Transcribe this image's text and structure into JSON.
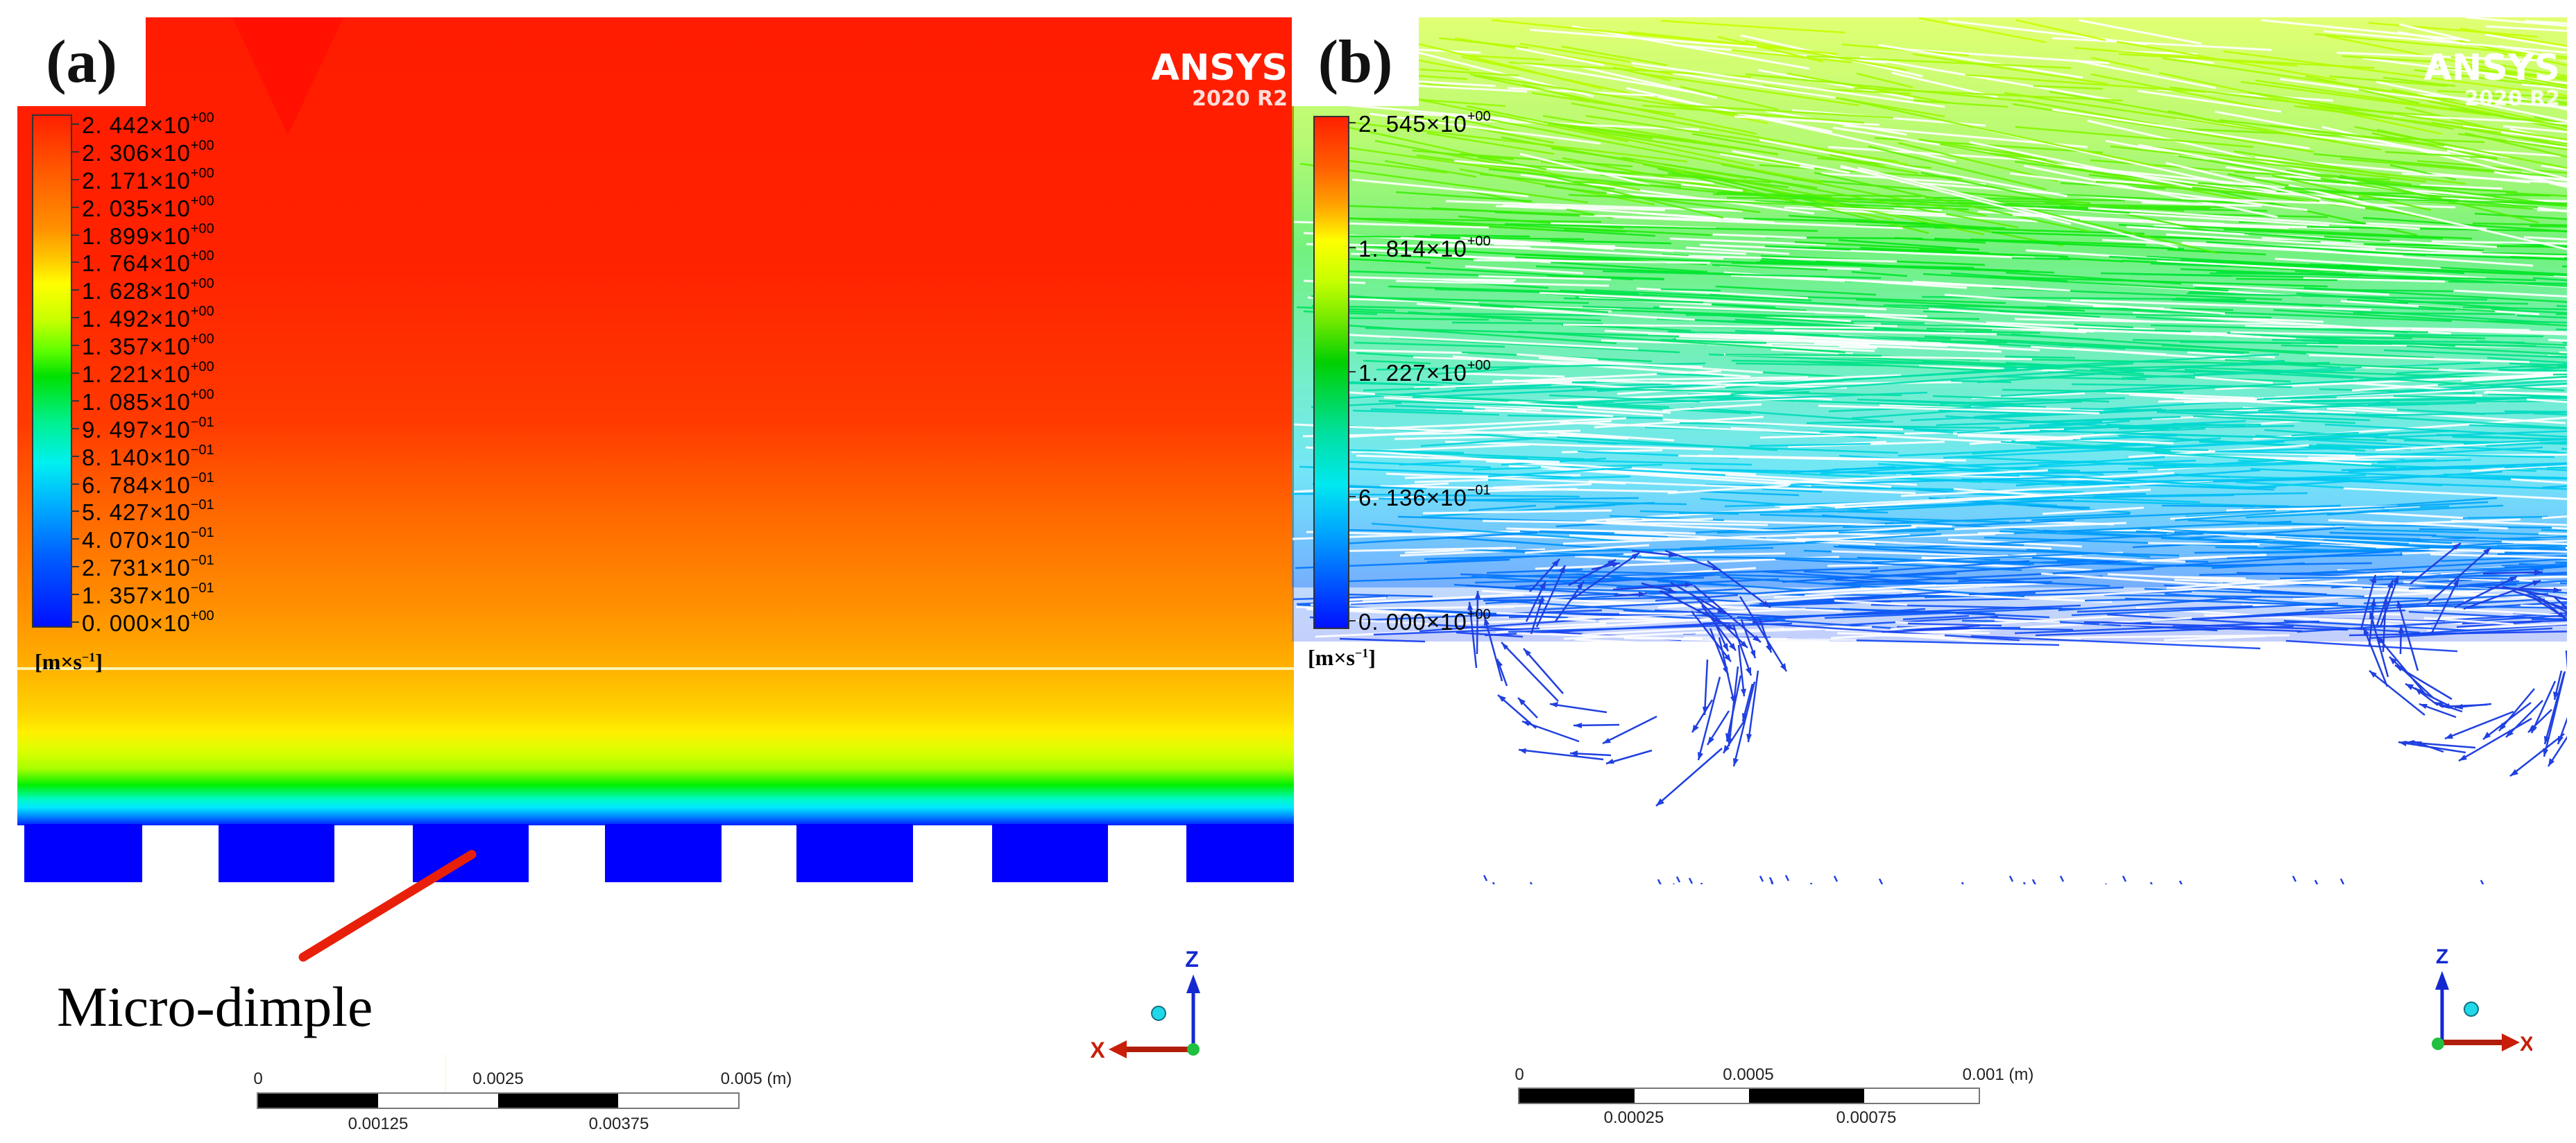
{
  "figure": {
    "panels": [
      {
        "id": "a",
        "label": "(a)",
        "type": "velocity-contour",
        "watermark": {
          "name": "ANSYS",
          "version": "2020 R2"
        },
        "legend": {
          "units": "[m×s",
          "units_exp": "−1",
          "units_close": "]",
          "entries": [
            {
              "mant": "2. 442",
              "exp": "+00"
            },
            {
              "mant": "2. 306",
              "exp": "+00"
            },
            {
              "mant": "2. 171",
              "exp": "+00"
            },
            {
              "mant": "2. 035",
              "exp": "+00"
            },
            {
              "mant": "1. 899",
              "exp": "+00"
            },
            {
              "mant": "1. 764",
              "exp": "+00"
            },
            {
              "mant": "1. 628",
              "exp": "+00"
            },
            {
              "mant": "1. 492",
              "exp": "+00"
            },
            {
              "mant": "1. 357",
              "exp": "+00"
            },
            {
              "mant": "1. 221",
              "exp": "+00"
            },
            {
              "mant": "1. 085",
              "exp": "+00"
            },
            {
              "mant": "9. 497",
              "exp": "−01"
            },
            {
              "mant": "8. 140",
              "exp": "−01"
            },
            {
              "mant": "6. 784",
              "exp": "−01"
            },
            {
              "mant": "5. 427",
              "exp": "−01"
            },
            {
              "mant": "4. 070",
              "exp": "−01"
            },
            {
              "mant": "2. 731",
              "exp": "−01"
            },
            {
              "mant": "1. 357",
              "exp": "−01"
            },
            {
              "mant": "0. 000",
              "exp": "+00"
            }
          ]
        },
        "annotation": "Micro-dimple",
        "scale_bar": {
          "top": [
            "0",
            "0.0025",
            "0.005  (m)"
          ],
          "bottom": [
            "0.00125",
            "0.00375"
          ]
        },
        "axes": {
          "vertical": "Z",
          "horizontal": "X"
        }
      },
      {
        "id": "b",
        "label": "(b)",
        "type": "velocity-vectors",
        "watermark": {
          "name": "ANSYS",
          "version": "2020 R2"
        },
        "legend": {
          "units": "[m×s",
          "units_exp": "−1",
          "units_close": "]",
          "entries": [
            {
              "mant": "2. 545",
              "exp": "+00"
            },
            {
              "mant": "1. 814",
              "exp": "+00"
            },
            {
              "mant": "1. 227",
              "exp": "+00"
            },
            {
              "mant": "6. 136",
              "exp": "−01"
            },
            {
              "mant": "0. 000",
              "exp": "+00"
            }
          ]
        },
        "scale_bar": {
          "top": [
            "0",
            "0.0005",
            "0.001  (m)"
          ],
          "bottom": [
            "0.00025",
            "0.00075"
          ]
        },
        "axes": {
          "vertical": "Z",
          "horizontal": "X"
        }
      }
    ]
  },
  "colors": {
    "max": "#ff2000",
    "mid": "#00e000",
    "min": "#0010ff",
    "annotation_line": "#e8200a",
    "axis_z": "#1428d0",
    "axis_x": "#c81e0a"
  }
}
